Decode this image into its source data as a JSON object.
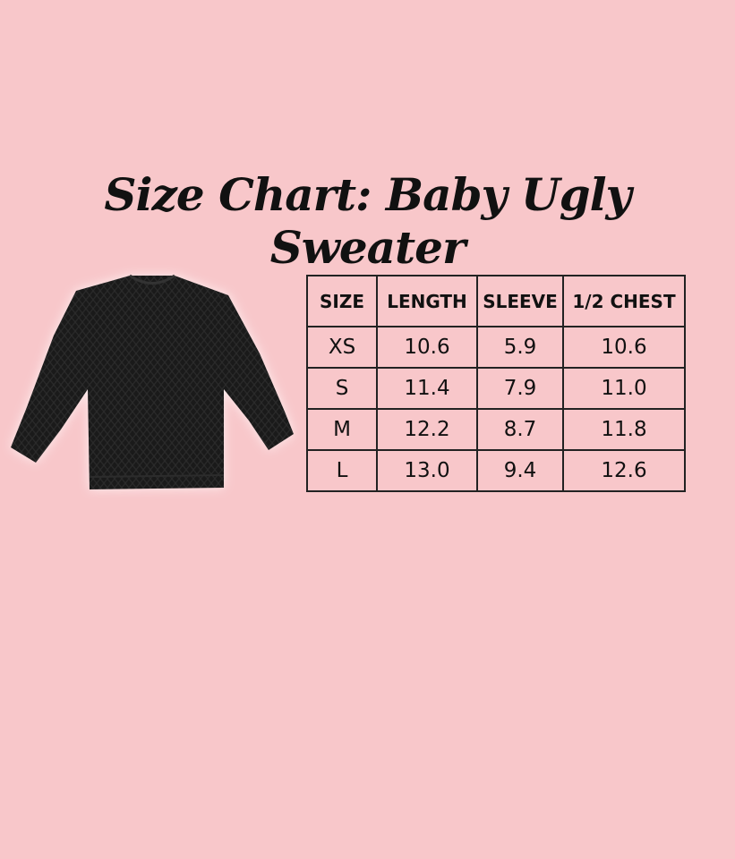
{
  "title": "Size Chart: Baby Ugly Sweater",
  "colors": {
    "background": "#f8c7ca",
    "text": "#111111",
    "sweater": "#1a1a1a"
  },
  "image": "black-knit-sweater",
  "table": {
    "headers": [
      "SIZE",
      "LENGTH",
      "SLEEVE",
      "1/2 CHEST"
    ],
    "rows": [
      [
        "XS",
        "10.6",
        "5.9",
        "10.6"
      ],
      [
        "S",
        "11.4",
        "7.9",
        "11.0"
      ],
      [
        "M",
        "12.2",
        "8.7",
        "11.8"
      ],
      [
        "L",
        "13.0",
        "9.4",
        "12.6"
      ]
    ]
  }
}
